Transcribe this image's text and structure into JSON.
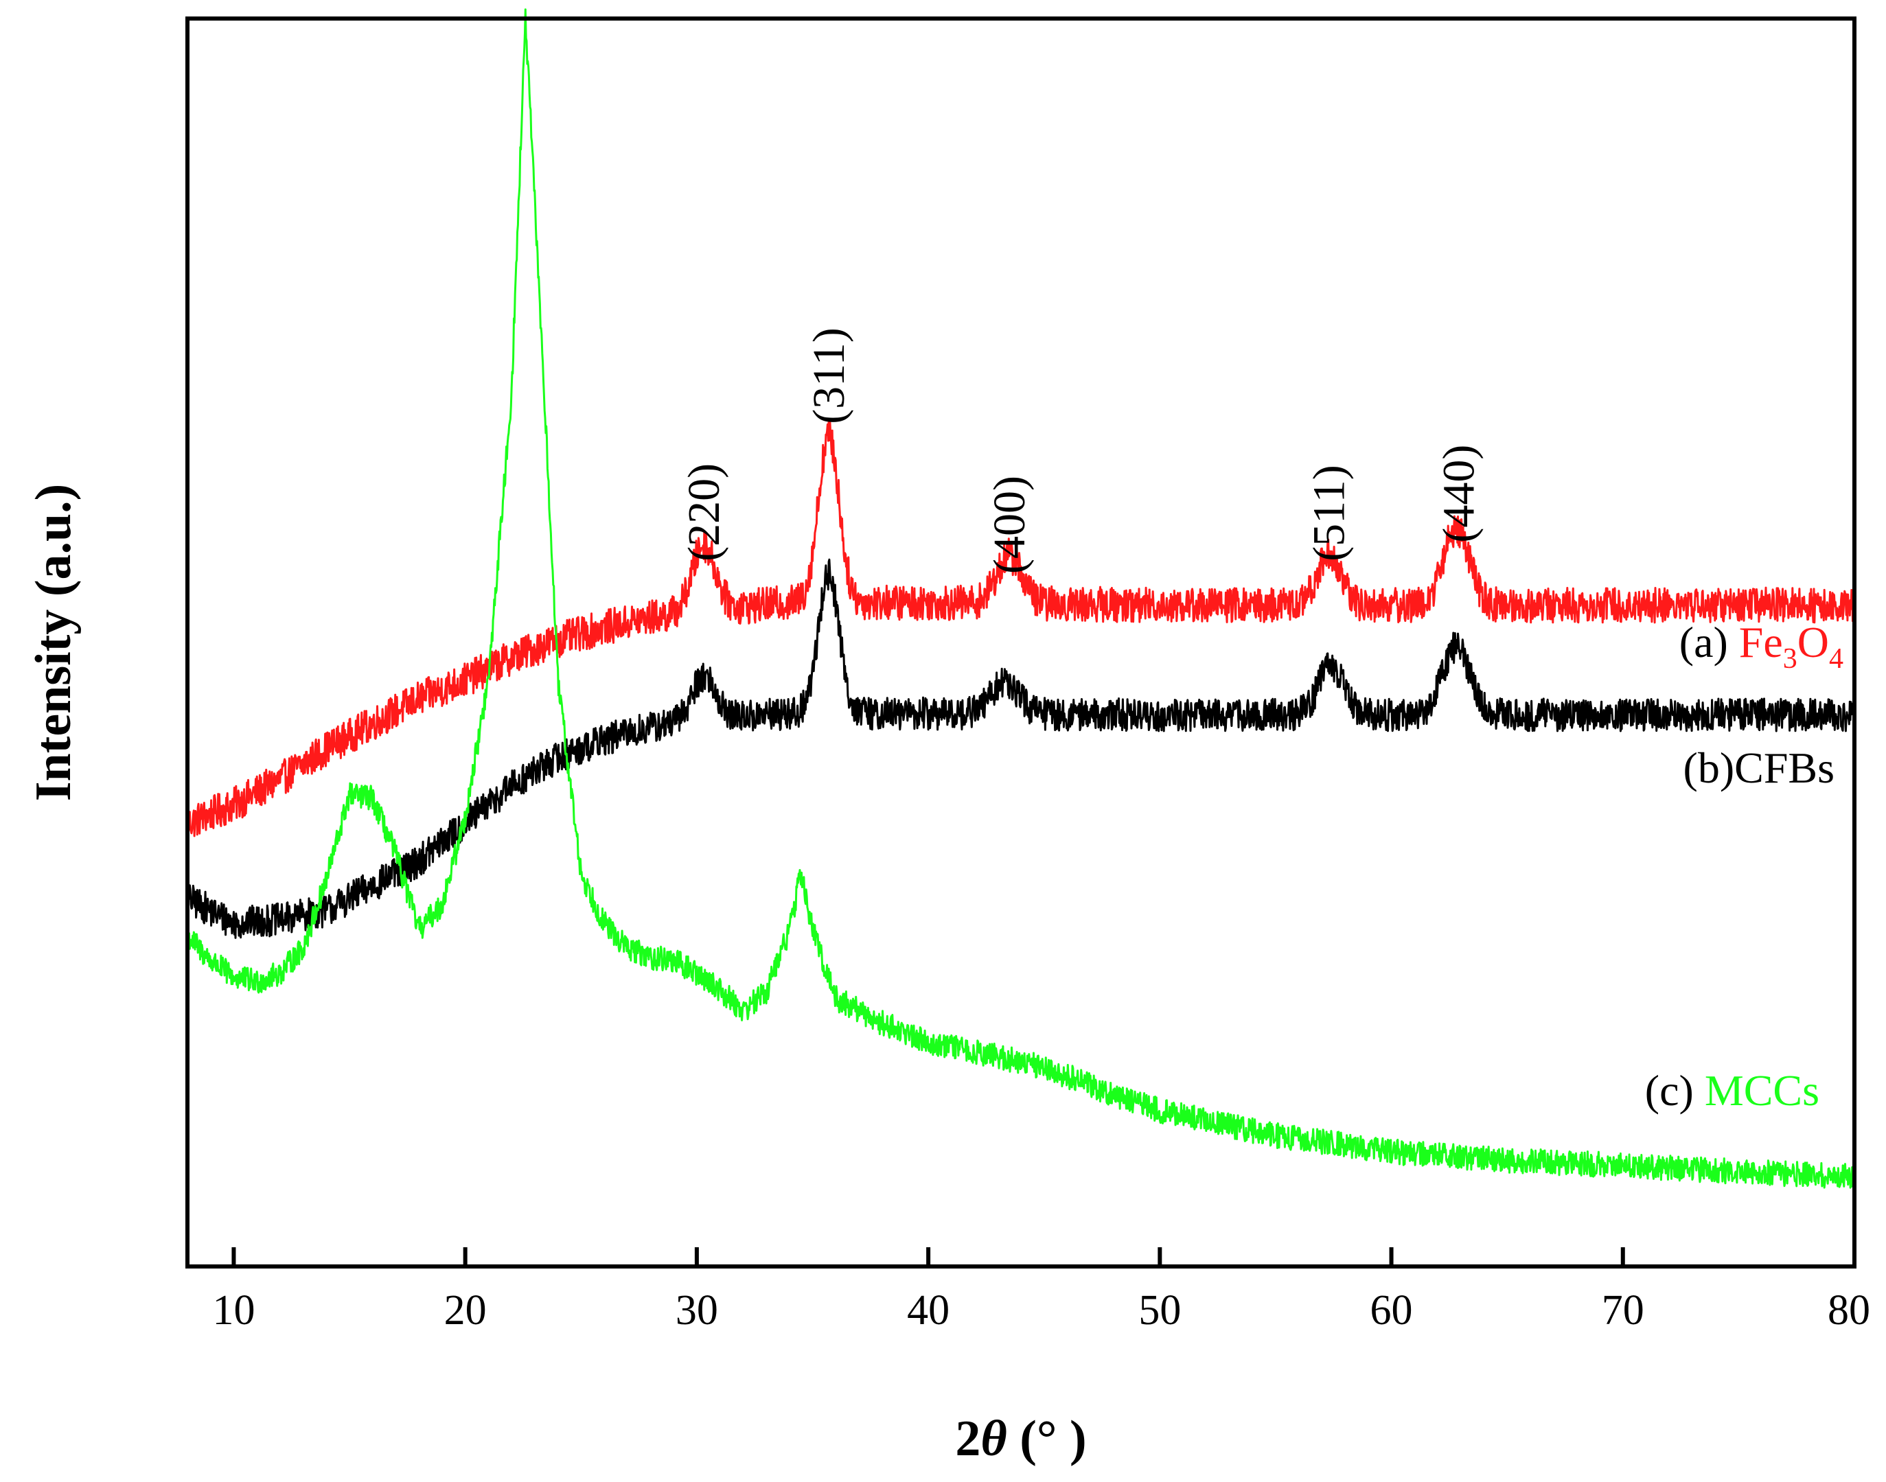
{
  "chart_data": {
    "type": "line",
    "title": "",
    "xlabel": {
      "prefix": "2",
      "symbol": "θ",
      "suffix": " (°  )"
    },
    "ylabel": "Intensity (a.u.)",
    "xlim": [
      8,
      80
    ],
    "ylim": [
      0,
      100
    ],
    "yticks_shown": false,
    "x_ticks": [
      10,
      20,
      30,
      40,
      50,
      60,
      70,
      80
    ],
    "x_tick_labels": [
      "10",
      "20",
      "30",
      "40",
      "50",
      "60",
      "70",
      "80"
    ],
    "series": [
      {
        "id": "a",
        "name": "(a) Fe3O4",
        "label_prefix": "(a) ",
        "label_main": "Fe",
        "label_sub1": "3",
        "label_mid": "O",
        "label_sub2": "4",
        "color": "#ff1a1a",
        "noise": 1.4,
        "baseline": [
          [
            8,
            35.5
          ],
          [
            10,
            37
          ],
          [
            12,
            39
          ],
          [
            14,
            41.5
          ],
          [
            16,
            43.5
          ],
          [
            18,
            45.5
          ],
          [
            20,
            47
          ],
          [
            22,
            48.8
          ],
          [
            24,
            50.2
          ],
          [
            26,
            51.2
          ],
          [
            28,
            52
          ],
          [
            30,
            52.5
          ],
          [
            34,
            53.2
          ],
          [
            40,
            53.2
          ],
          [
            50,
            53
          ],
          [
            60,
            53
          ],
          [
            70,
            53
          ],
          [
            80,
            53
          ]
        ],
        "peaks": [
          {
            "x": 30.3,
            "height": 5.3,
            "width": 0.5
          },
          {
            "x": 35.7,
            "height": 13.4,
            "width": 0.45
          },
          {
            "x": 43.5,
            "height": 3.8,
            "width": 0.55
          },
          {
            "x": 57.3,
            "height": 4.1,
            "width": 0.5
          },
          {
            "x": 62.8,
            "height": 6.2,
            "width": 0.55
          }
        ]
      },
      {
        "id": "b",
        "name": "(b)CFBs",
        "label_prefix": "(b)",
        "label_main": "CFBs",
        "color": "#000000",
        "noise": 1.3,
        "baseline": [
          [
            8,
            29.5
          ],
          [
            10,
            27.5
          ],
          [
            12,
            27.8
          ],
          [
            14,
            28.5
          ],
          [
            16,
            30.5
          ],
          [
            18,
            32.5
          ],
          [
            20,
            35.5
          ],
          [
            22,
            38.5
          ],
          [
            24,
            40.8
          ],
          [
            26,
            42.2
          ],
          [
            28,
            43.2
          ],
          [
            30,
            43.8
          ],
          [
            34,
            44.3
          ],
          [
            40,
            44.3
          ],
          [
            50,
            44.2
          ],
          [
            60,
            44.2
          ],
          [
            70,
            44.2
          ],
          [
            80,
            44.2
          ]
        ],
        "peaks": [
          {
            "x": 30.3,
            "height": 3.5,
            "width": 0.5
          },
          {
            "x": 35.7,
            "height": 11.2,
            "width": 0.45
          },
          {
            "x": 43.3,
            "height": 2.5,
            "width": 0.6
          },
          {
            "x": 57.4,
            "height": 3.9,
            "width": 0.55
          },
          {
            "x": 62.8,
            "height": 5.4,
            "width": 0.6
          }
        ]
      },
      {
        "id": "c",
        "name": "(c) MCCs",
        "label_prefix": "(c) ",
        "label_main": "MCCs",
        "color": "#1aff1a",
        "noise": 1.0,
        "baseline": [
          [
            8,
            26.5
          ],
          [
            9,
            24.5
          ],
          [
            10,
            23.2
          ],
          [
            11,
            22.8
          ],
          [
            12,
            23.5
          ],
          [
            13,
            25.5
          ],
          [
            14,
            31
          ],
          [
            15,
            37.8
          ],
          [
            16,
            37.5
          ],
          [
            17,
            33
          ],
          [
            18,
            27
          ],
          [
            19,
            29
          ],
          [
            20,
            36
          ],
          [
            21,
            47
          ],
          [
            22,
            70
          ],
          [
            22.6,
            100
          ],
          [
            23.2,
            78
          ],
          [
            24,
            47
          ],
          [
            25,
            31.5
          ],
          [
            26,
            27.5
          ],
          [
            27,
            25.5
          ],
          [
            28,
            24.8
          ],
          [
            29,
            24.5
          ],
          [
            30,
            23.5
          ],
          [
            31,
            22.2
          ],
          [
            32,
            20.5
          ],
          [
            33,
            22
          ],
          [
            34,
            27
          ],
          [
            34.5,
            31.5
          ],
          [
            35,
            27
          ],
          [
            36,
            21.5
          ],
          [
            38,
            19.5
          ],
          [
            40,
            18
          ],
          [
            42,
            17.2
          ],
          [
            45,
            16
          ],
          [
            48,
            13.8
          ],
          [
            50,
            12.5
          ],
          [
            55,
            10.5
          ],
          [
            60,
            9.2
          ],
          [
            65,
            8.5
          ],
          [
            70,
            8.1
          ],
          [
            75,
            7.6
          ],
          [
            80,
            7.2
          ]
        ],
        "peaks": []
      }
    ],
    "peak_labels": [
      {
        "x": 30.3,
        "y": 56.5,
        "text": "(220)"
      },
      {
        "x": 35.7,
        "y": 67.5,
        "text": "(311)"
      },
      {
        "x": 43.5,
        "y": 55.5,
        "text": "(400)"
      },
      {
        "x": 57.3,
        "y": 56.5,
        "text": "(511)"
      },
      {
        "x": 62.9,
        "y": 58.0,
        "text": "(440)"
      }
    ],
    "legend_placement": "right, next to each curve"
  }
}
